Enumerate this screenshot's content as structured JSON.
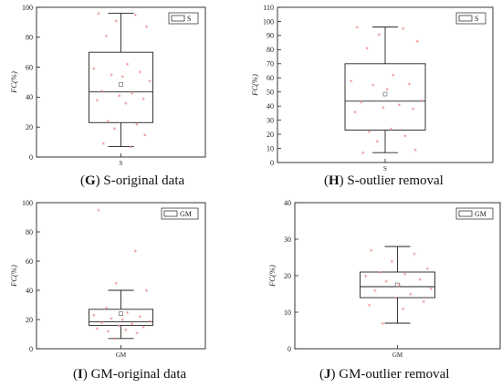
{
  "chart_data": [
    {
      "type": "box",
      "panel_letter": "G",
      "caption": "S-original data",
      "ylabel": "FC(%)",
      "ylim": [
        0,
        100
      ],
      "yticks": [
        0,
        20,
        40,
        60,
        80,
        100
      ],
      "category": "S",
      "legend_label": "S",
      "legend_position": "top-right",
      "box": {
        "whisker_low": 7,
        "q1": 23,
        "median": 43.5,
        "q3": 70,
        "whisker_high": 96,
        "mean": 48.5
      },
      "points": [
        96,
        95,
        91,
        87,
        81,
        62,
        59,
        57,
        55,
        54,
        51,
        44,
        43,
        41,
        39,
        38,
        36,
        24,
        22,
        19,
        15,
        9,
        7
      ],
      "point_color": "#f08c8c"
    },
    {
      "type": "box",
      "panel_letter": "H",
      "caption": "S-outlier removal",
      "ylabel": "FC(%)",
      "ylim": [
        0,
        110
      ],
      "yticks": [
        0,
        10,
        20,
        30,
        40,
        50,
        60,
        70,
        80,
        90,
        100,
        110
      ],
      "category": "S",
      "legend_label": "S",
      "legend_position": "top-right",
      "box": {
        "whisker_low": 7,
        "q1": 23,
        "median": 43.5,
        "q3": 70,
        "whisker_high": 96,
        "mean": 48.5
      },
      "points": [
        96,
        95,
        91,
        86,
        81,
        62,
        58,
        56,
        55,
        52,
        44,
        43,
        41,
        39,
        38,
        36,
        24,
        22,
        19,
        15,
        9,
        7
      ],
      "point_color": "#f08c8c"
    },
    {
      "type": "box",
      "panel_letter": "I",
      "caption": "GM-original data",
      "ylabel": "FC(%)",
      "ylim": [
        0,
        100
      ],
      "yticks": [
        0,
        20,
        40,
        60,
        80,
        100
      ],
      "category": "GM",
      "legend_label": "GM",
      "legend_position": "top-right",
      "box": {
        "whisker_low": 7,
        "q1": 16,
        "median": 18.5,
        "q3": 27,
        "whisker_high": 40,
        "mean": 24
      },
      "points": [
        95,
        67,
        45,
        40,
        28,
        25,
        23,
        22,
        21,
        20,
        19,
        18,
        17,
        16,
        15,
        14,
        13,
        12,
        11,
        7
      ],
      "point_color": "#f08c8c"
    },
    {
      "type": "box",
      "panel_letter": "J",
      "caption": "GM-outlier removal",
      "ylabel": "FC(%)",
      "ylim": [
        0,
        40
      ],
      "yticks": [
        0,
        10,
        20,
        30,
        40
      ],
      "category": "GM",
      "legend_label": "GM",
      "legend_position": "top-right",
      "box": {
        "whisker_low": 7,
        "q1": 14,
        "median": 17,
        "q3": 21,
        "whisker_high": 28,
        "mean": 17.5
      },
      "points": [
        27,
        26,
        24,
        22,
        21,
        20.5,
        20,
        19,
        18.5,
        17.5,
        16.5,
        16,
        15,
        14,
        13,
        12,
        11,
        7
      ],
      "point_color": "#f08c8c"
    }
  ]
}
